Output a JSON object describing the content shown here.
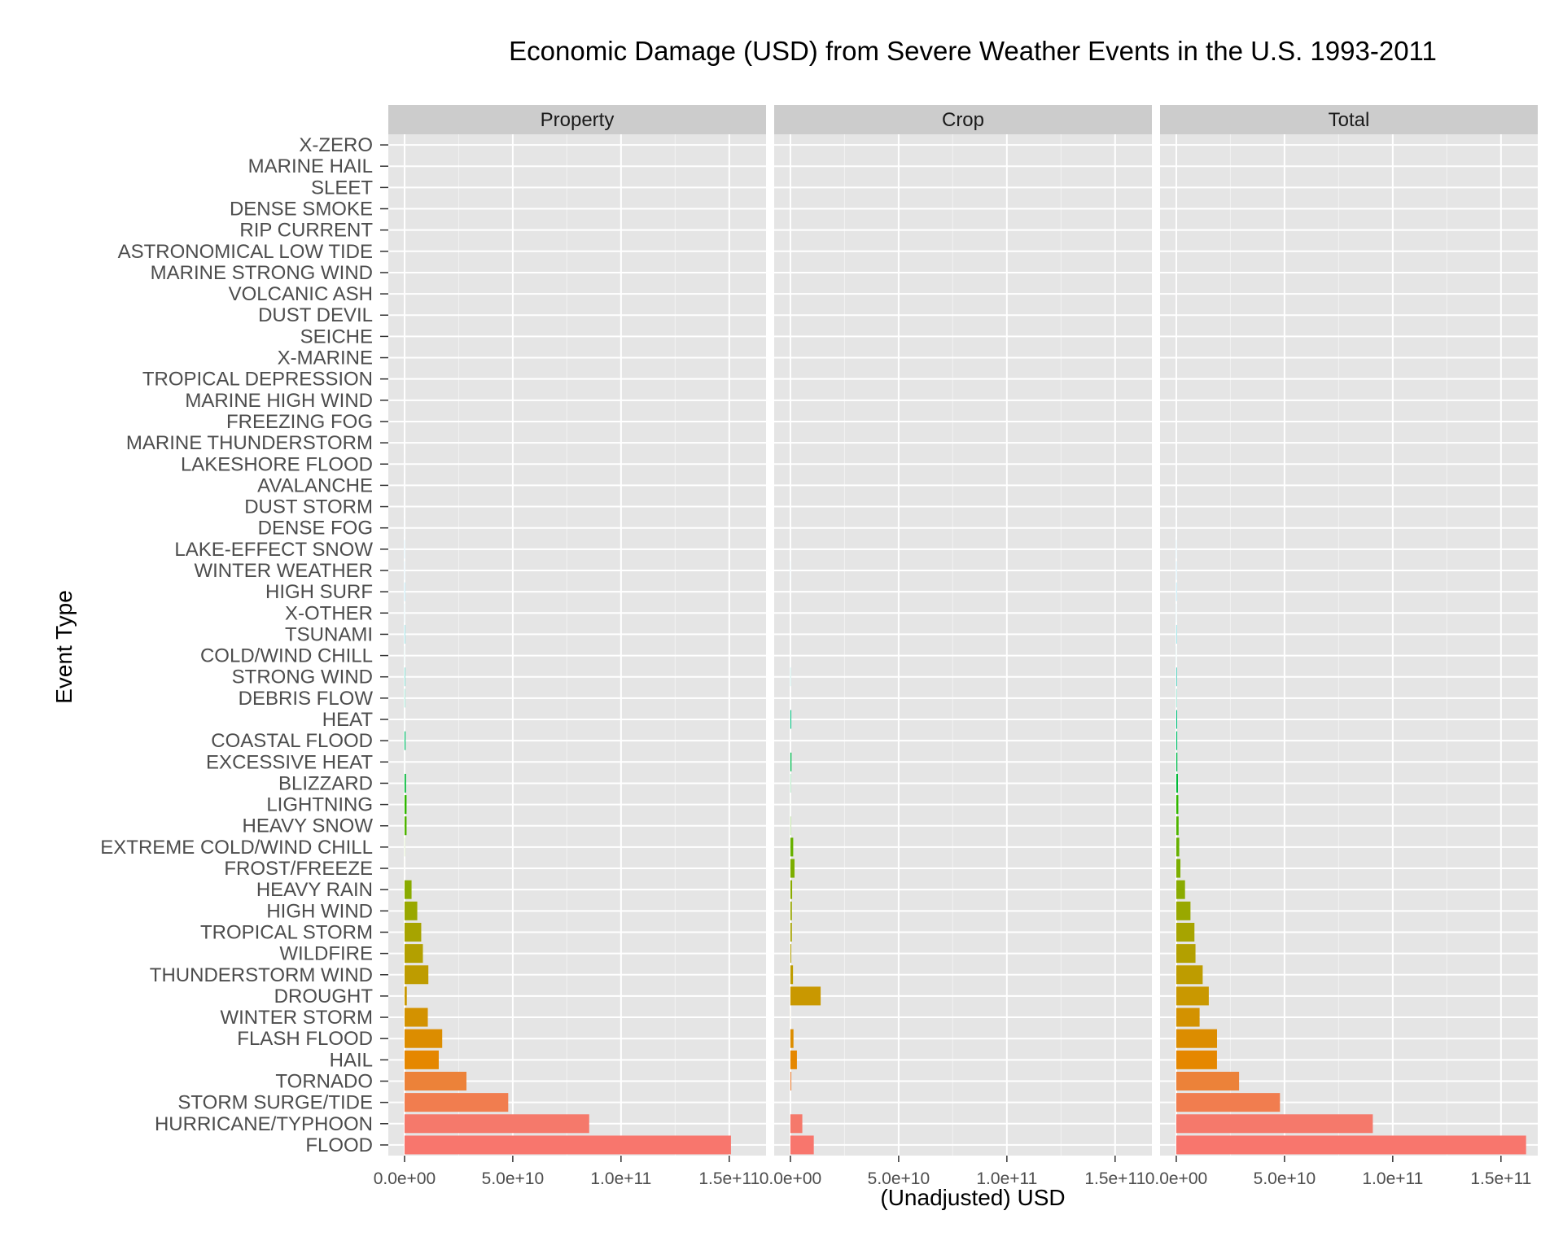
{
  "chart_data": {
    "type": "bar",
    "orientation": "horizontal",
    "title": "Economic Damage (USD) from Severe Weather Events in the U.S. 1993-2011",
    "xlabel": "(Unadjusted) USD",
    "ylabel": "Event Type",
    "xlim": [
      -7500000000,
      167000000000
    ],
    "xticks": [
      0,
      50000000000,
      100000000000,
      150000000000
    ],
    "xtick_labels": [
      "0.0e+00",
      "5.0e+10",
      "1.0e+11",
      "1.5e+11"
    ],
    "facets": [
      "Property",
      "Crop",
      "Total"
    ],
    "grid": true,
    "legend": "none",
    "colors": {
      "panel_bg": "#e5e5e5",
      "grid": "#ffffff",
      "strip_bg": "#cccccc"
    },
    "categories": [
      "X-ZERO",
      "MARINE HAIL",
      "SLEET",
      "DENSE SMOKE",
      "RIP CURRENT",
      "ASTRONOMICAL LOW TIDE",
      "MARINE STRONG WIND",
      "VOLCANIC ASH",
      "DUST DEVIL",
      "SEICHE",
      "X-MARINE",
      "TROPICAL DEPRESSION",
      "MARINE HIGH WIND",
      "FREEZING FOG",
      "MARINE THUNDERSTORM",
      "LAKESHORE FLOOD",
      "AVALANCHE",
      "DUST STORM",
      "DENSE FOG",
      "LAKE-EFFECT SNOW",
      "WINTER WEATHER",
      "HIGH SURF",
      "X-OTHER",
      "TSUNAMI",
      "COLD/WIND CHILL",
      "STRONG WIND",
      "DEBRIS FLOW",
      "HEAT",
      "COASTAL FLOOD",
      "EXCESSIVE HEAT",
      "BLIZZARD",
      "LIGHTNING",
      "HEAVY SNOW",
      "EXTREME COLD/WIND CHILL",
      "FROST/FREEZE",
      "HEAVY RAIN",
      "HIGH WIND",
      "TROPICAL STORM",
      "WILDFIRE",
      "THUNDERSTORM WIND",
      "DROUGHT",
      "WINTER STORM",
      "FLASH FLOOD",
      "HAIL",
      "TORNADO",
      "STORM SURGE/TIDE",
      "HURRICANE/TYPHOON",
      "FLOOD"
    ],
    "bar_colors": [
      "#F564E3",
      "#F763E0",
      "#F962DB",
      "#FA62D6",
      "#FC61D0",
      "#FD61CA",
      "#FE61C3",
      "#FF61BC",
      "#FF62B4",
      "#FF63AC",
      "#E76BF3",
      "#DA73FB",
      "#C77CFF",
      "#B385FF",
      "#9E8DFF",
      "#8794FF",
      "#6C9AFF",
      "#4AA0FE",
      "#00A5FF",
      "#00A9F3",
      "#00ADE6",
      "#00B0DA",
      "#00B3CC",
      "#00B6BD",
      "#00B9AE",
      "#00BB9E",
      "#00BD8D",
      "#00BF7D",
      "#00C06C",
      "#00BC4F",
      "#00BA38",
      "#30B700",
      "#4FB400",
      "#67B000",
      "#7CAE00",
      "#8AAB00",
      "#99A800",
      "#A7A400",
      "#B3A000",
      "#BE9C00",
      "#C99800",
      "#D39200",
      "#DC8D00",
      "#E58700",
      "#EC8239",
      "#F17D4F",
      "#F5796B",
      "#F8766D"
    ],
    "series": [
      {
        "name": "Property",
        "values": [
          0,
          4000000,
          0,
          100000,
          200000,
          300000,
          400000,
          9000000,
          700000,
          1000000,
          100000,
          1700000,
          1300000,
          2200000,
          400000,
          7500000,
          3700000,
          5600000,
          9500000,
          40000000,
          35000000,
          89000000,
          30000000,
          144000000,
          26000000,
          177000000,
          131000000,
          10000000,
          440000000,
          8000000,
          660000000,
          930000000,
          940000000,
          67000000,
          10000000,
          3240000000,
          5880000000,
          7710000000,
          8480000000,
          11000000000,
          1050000000,
          10750000000,
          17400000000,
          15800000000,
          28600000000,
          47900000000,
          85300000000,
          150800000000
        ]
      },
      {
        "name": "Crop",
        "values": [
          0,
          0,
          0,
          0,
          0,
          0,
          0,
          0,
          0,
          0,
          0,
          0,
          0,
          0,
          50000,
          0,
          0,
          3600000,
          0,
          0,
          20000000,
          0,
          1000000,
          20000,
          1300000,
          70000000,
          0,
          400000000,
          1000,
          490000000,
          110000000,
          12000000,
          134000000,
          1300000000,
          1900000000,
          800000000,
          680000000,
          680000000,
          400000000,
          1200000000,
          13970000000,
          27000000,
          1420000000,
          3000000000,
          420000000,
          1000,
          5500000000,
          10800000000
        ]
      },
      {
        "name": "Total",
        "values": [
          0,
          4000000,
          0,
          100000,
          200000,
          300000,
          400000,
          9000000,
          700000,
          1000000,
          100000,
          1700000,
          1300000,
          2200000,
          450000,
          7500000,
          3700000,
          9200000,
          9500000,
          40000000,
          55000000,
          89000000,
          31000000,
          144020000,
          27300000,
          247000000,
          131000000,
          410000000,
          440001000,
          498000000,
          770000000,
          942000000,
          1074000000,
          1367000000,
          1910000000,
          4040000000,
          6560000000,
          8390000000,
          8880000000,
          12200000000,
          15020000000,
          10777000000,
          18820000000,
          18800000000,
          29020000000,
          47900001000,
          90800000000,
          161600000000
        ]
      }
    ]
  }
}
